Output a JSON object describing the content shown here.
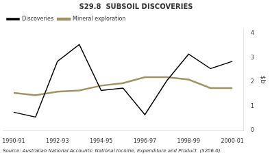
{
  "chart_data": {
    "type": "line",
    "title": "S29.8  SUBSOIL DISCOVERIES",
    "y_label": "$b",
    "categories": [
      "1990-91",
      null,
      "1992-93",
      null,
      "1994-95",
      null,
      "1996-97",
      null,
      "1998-99",
      null,
      "2000-01"
    ],
    "series": [
      {
        "name": "Discoveries",
        "color": "#000000",
        "values": [
          0.75,
          0.55,
          2.85,
          3.55,
          1.65,
          1.75,
          0.65,
          2.05,
          3.15,
          2.55,
          2.85
        ]
      },
      {
        "name": "Mineral exploration",
        "color": "#9e9464",
        "values": [
          1.55,
          1.45,
          1.6,
          1.65,
          1.85,
          1.95,
          2.2,
          2.2,
          2.1,
          1.75,
          1.75
        ]
      }
    ],
    "ylim": [
      0,
      4.2
    ],
    "yticks": [
      0,
      1,
      2,
      3,
      4
    ],
    "grid": false,
    "legend": "upper left",
    "marker": "none",
    "annotations": [
      "Source: Australian National Accounts: National Income, Expenditure and Product  (5206.0)."
    ]
  }
}
